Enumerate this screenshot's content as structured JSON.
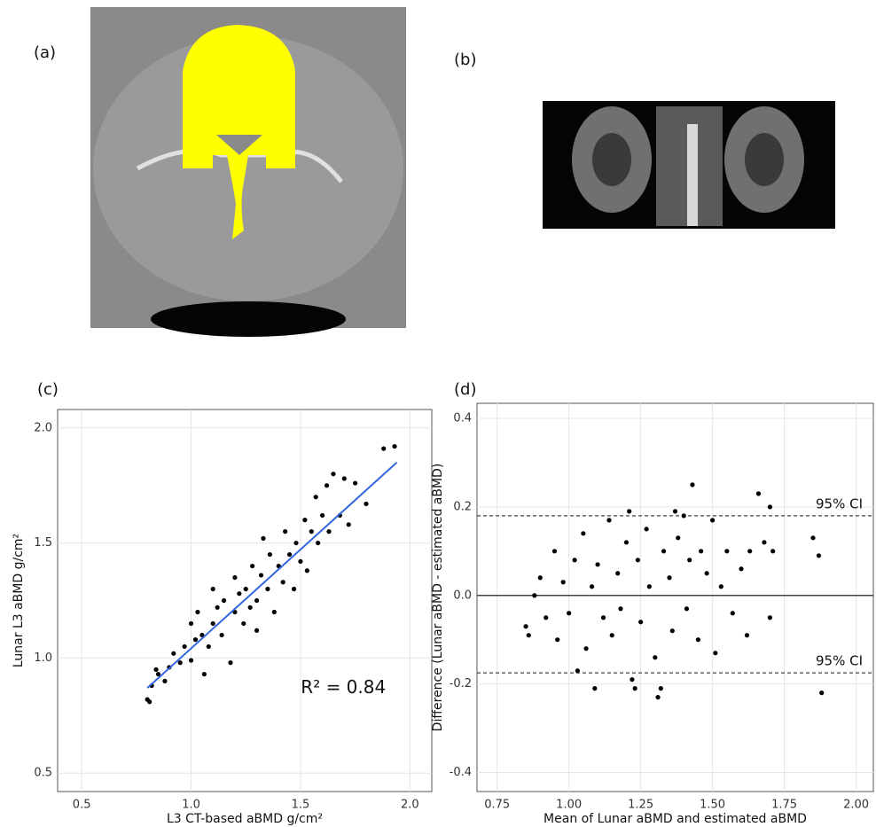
{
  "panel_labels": [
    "(a)",
    "(b)",
    "(c)",
    "(d)"
  ],
  "chart_data": [
    {
      "type": "scatter",
      "xlabel": "L3 CT-based aBMD g/cm²",
      "ylabel": "Lunar L3 aBMD g/cm²",
      "annotation": "R² = 0.84",
      "color": "#000000",
      "grid": true,
      "xlim": [
        0.39,
        2.1
      ],
      "ylim": [
        0.42,
        2.08
      ],
      "xticks": [
        0.5,
        {
          "value": 1,
          "label": "1.0"
        },
        1.5,
        {
          "value": 2,
          "label": "2.0"
        }
      ],
      "yticks": [
        0.5,
        {
          "value": 1,
          "label": "1.0"
        },
        1.5,
        {
          "value": 2,
          "label": "2.0"
        }
      ],
      "fit_line": {
        "x": [
          0.8,
          1.94
        ],
        "y": [
          0.87,
          1.85
        ],
        "color": "#3366e0"
      },
      "x": [
        0.8,
        0.81,
        0.82,
        0.84,
        0.85,
        0.88,
        0.9,
        0.92,
        0.95,
        0.97,
        1.0,
        1.0,
        1.02,
        1.03,
        1.05,
        1.06,
        1.08,
        1.1,
        1.1,
        1.12,
        1.14,
        1.15,
        1.18,
        1.2,
        1.2,
        1.22,
        1.24,
        1.25,
        1.27,
        1.28,
        1.3,
        1.3,
        1.32,
        1.33,
        1.35,
        1.36,
        1.38,
        1.4,
        1.42,
        1.43,
        1.45,
        1.47,
        1.48,
        1.5,
        1.52,
        1.53,
        1.55,
        1.57,
        1.58,
        1.6,
        1.62,
        1.63,
        1.65,
        1.68,
        1.7,
        1.72,
        1.75,
        1.8,
        1.88,
        1.93
      ],
      "values": [
        0.82,
        0.81,
        0.88,
        0.95,
        0.93,
        0.9,
        0.96,
        1.02,
        0.98,
        1.05,
        0.99,
        1.15,
        1.08,
        1.2,
        1.1,
        0.93,
        1.05,
        1.15,
        1.3,
        1.22,
        1.1,
        1.25,
        0.98,
        1.2,
        1.35,
        1.28,
        1.15,
        1.3,
        1.22,
        1.4,
        1.25,
        1.12,
        1.36,
        1.52,
        1.3,
        1.45,
        1.2,
        1.4,
        1.33,
        1.55,
        1.45,
        1.3,
        1.5,
        1.42,
        1.6,
        1.38,
        1.55,
        1.7,
        1.5,
        1.62,
        1.75,
        1.55,
        1.8,
        1.62,
        1.78,
        1.58,
        1.76,
        1.67,
        1.91,
        1.92
      ]
    },
    {
      "type": "scatter",
      "xlabel": "Mean of Lunar aBMD and estimated aBMD",
      "ylabel": "Difference (Lunar aBMD - estimated aBMD)",
      "color": "#000000",
      "grid": true,
      "xlim": [
        0.68,
        2.06
      ],
      "ylim": [
        -0.443,
        0.434
      ],
      "xticks": [
        0.75,
        {
          "value": 1,
          "label": "1.00"
        },
        1.25,
        {
          "value": 1.5,
          "label": "1.50"
        },
        1.75,
        {
          "value": 2,
          "label": "2.00"
        }
      ],
      "yticks": [
        0.4,
        0.2,
        {
          "value": 0,
          "label": "0.0"
        },
        -0.2,
        -0.4
      ],
      "hlines": [
        {
          "y": 0,
          "style": "solid"
        },
        {
          "y": 0.18,
          "style": "dashed",
          "label": "95% CI"
        },
        {
          "y": -0.175,
          "style": "dashed",
          "label": "95% CI"
        }
      ],
      "x": [
        0.85,
        0.86,
        0.88,
        0.9,
        0.92,
        0.95,
        0.96,
        0.98,
        1.0,
        1.02,
        1.03,
        1.05,
        1.06,
        1.08,
        1.09,
        1.1,
        1.12,
        1.14,
        1.15,
        1.17,
        1.18,
        1.2,
        1.21,
        1.22,
        1.23,
        1.24,
        1.25,
        1.27,
        1.28,
        1.3,
        1.31,
        1.32,
        1.33,
        1.35,
        1.36,
        1.37,
        1.38,
        1.4,
        1.41,
        1.42,
        1.43,
        1.45,
        1.46,
        1.48,
        1.5,
        1.51,
        1.53,
        1.55,
        1.57,
        1.6,
        1.62,
        1.63,
        1.66,
        1.68,
        1.7,
        1.71,
        1.7,
        1.85,
        1.87,
        1.88
      ],
      "values": [
        -0.07,
        -0.09,
        0.0,
        0.04,
        -0.05,
        0.1,
        -0.1,
        0.03,
        -0.04,
        0.08,
        -0.17,
        0.14,
        -0.12,
        0.02,
        -0.21,
        0.07,
        -0.05,
        0.17,
        -0.09,
        0.05,
        -0.03,
        0.12,
        0.19,
        -0.19,
        -0.21,
        0.08,
        -0.06,
        0.15,
        0.02,
        -0.14,
        -0.23,
        -0.21,
        0.1,
        0.04,
        -0.08,
        0.19,
        0.13,
        0.18,
        -0.03,
        0.08,
        0.25,
        -0.1,
        0.1,
        0.05,
        0.17,
        -0.13,
        0.02,
        0.1,
        -0.04,
        0.06,
        -0.09,
        0.1,
        0.23,
        0.12,
        0.2,
        0.1,
        -0.05,
        0.13,
        0.09,
        -0.22
      ]
    }
  ]
}
